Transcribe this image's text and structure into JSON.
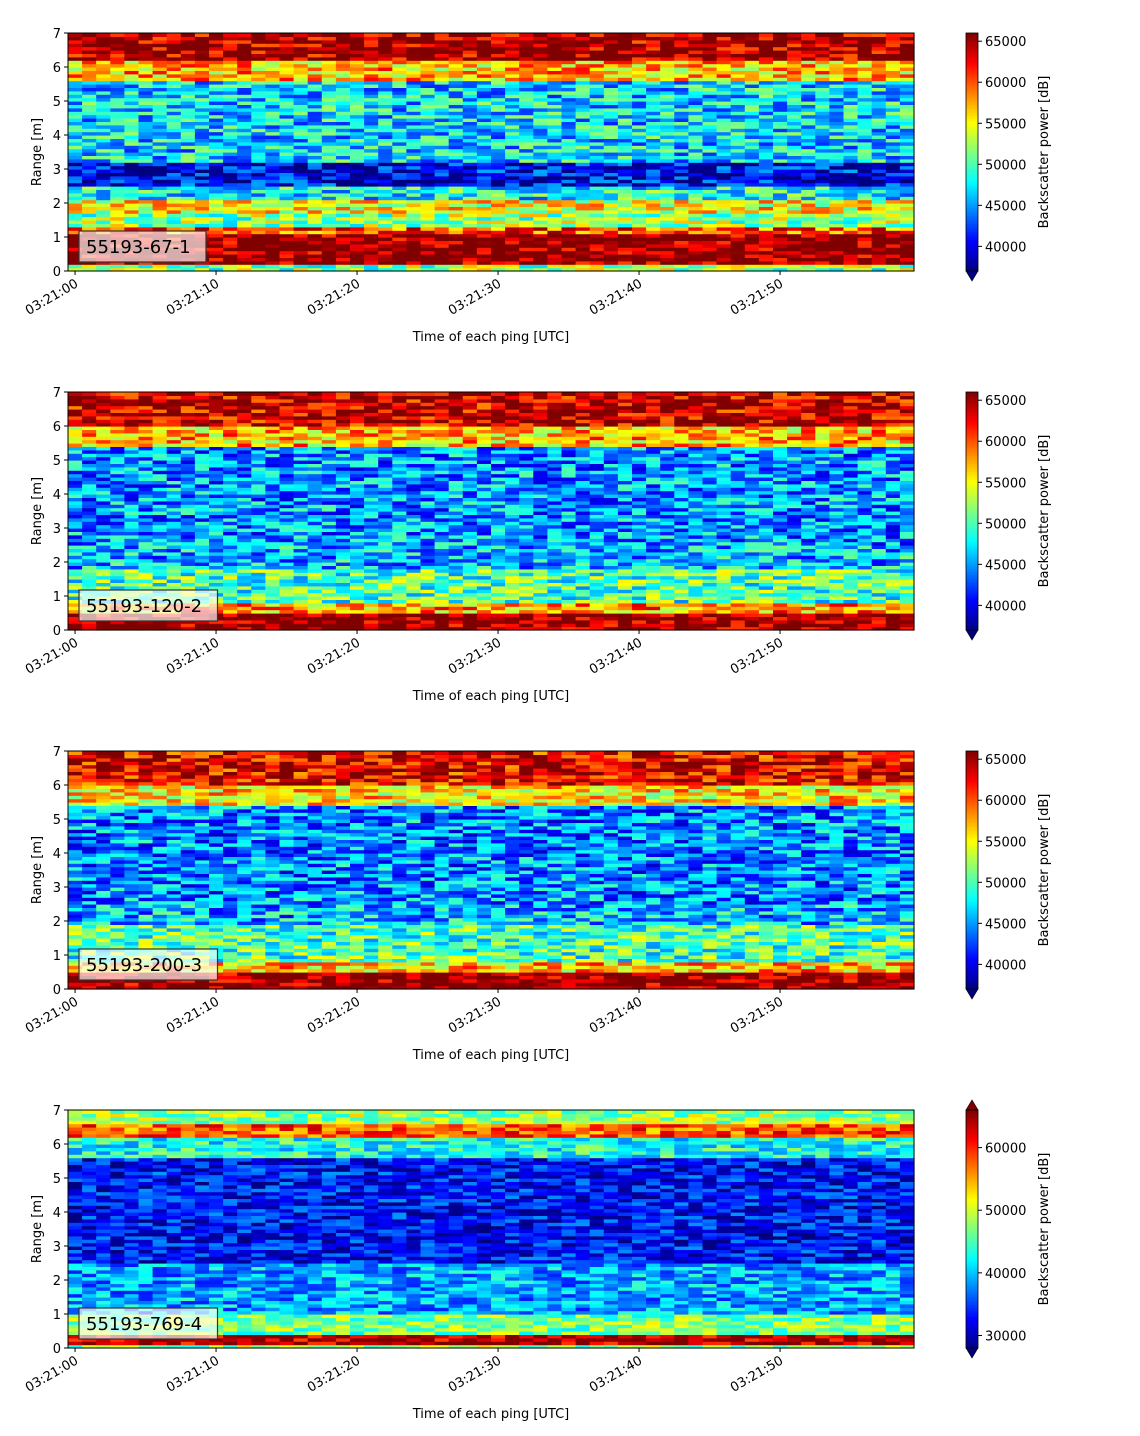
{
  "chart_data": [
    {
      "type": "heatmap",
      "label": "55193-67-1",
      "xlabel": "Time of each ping [UTC]",
      "ylabel": "Range [m]",
      "x_ticks": [
        "03:21:00",
        "03:21:10",
        "03:21:20",
        "03:21:30",
        "03:21:40",
        "03:21:50"
      ],
      "x_range_seconds": [
        0,
        60
      ],
      "ylim": [
        0,
        7
      ],
      "y_ticks": [
        0,
        1,
        2,
        3,
        4,
        5,
        6,
        7
      ],
      "colorbar": {
        "label": "Backscatter power [dB]",
        "ticks": [
          40000,
          45000,
          50000,
          55000,
          60000,
          65000
        ],
        "vmin": 37000,
        "vmax": 66000,
        "extend": "min",
        "colormap": "jet"
      },
      "bands": [
        {
          "y": [
            0.0,
            0.25
          ],
          "value": 52000
        },
        {
          "y": [
            0.25,
            1.1
          ],
          "value": 66000
        },
        {
          "y": [
            1.1,
            1.3
          ],
          "value": 60000
        },
        {
          "y": [
            1.3,
            1.7
          ],
          "value": 52000
        },
        {
          "y": [
            1.7,
            2.1
          ],
          "value": 55000
        },
        {
          "y": [
            2.1,
            2.5
          ],
          "value": 48000
        },
        {
          "y": [
            2.5,
            3.2
          ],
          "value": 40000
        },
        {
          "y": [
            3.2,
            5.6
          ],
          "value": 47000
        },
        {
          "y": [
            5.6,
            6.2
          ],
          "value": 57000
        },
        {
          "y": [
            6.2,
            7.0
          ],
          "value": 65000
        }
      ]
    },
    {
      "type": "heatmap",
      "label": "55193-120-2",
      "xlabel": "Time of each ping [UTC]",
      "ylabel": "Range [m]",
      "x_ticks": [
        "03:21:00",
        "03:21:10",
        "03:21:20",
        "03:21:30",
        "03:21:40",
        "03:21:50"
      ],
      "x_range_seconds": [
        0,
        60
      ],
      "ylim": [
        0,
        7
      ],
      "y_ticks": [
        0,
        1,
        2,
        3,
        4,
        5,
        6,
        7
      ],
      "colorbar": {
        "label": "Backscatter power [dB]",
        "ticks": [
          40000,
          45000,
          50000,
          55000,
          60000,
          65000
        ],
        "vmin": 37000,
        "vmax": 66000,
        "extend": "min",
        "colormap": "jet"
      },
      "bands": [
        {
          "y": [
            0.0,
            0.5
          ],
          "value": 66000
        },
        {
          "y": [
            0.5,
            0.8
          ],
          "value": 58000
        },
        {
          "y": [
            0.8,
            1.8
          ],
          "value": 50000
        },
        {
          "y": [
            1.8,
            2.5
          ],
          "value": 46000
        },
        {
          "y": [
            2.5,
            5.4
          ],
          "value": 45000
        },
        {
          "y": [
            5.4,
            6.0
          ],
          "value": 57000
        },
        {
          "y": [
            6.0,
            7.0
          ],
          "value": 64000
        }
      ]
    },
    {
      "type": "heatmap",
      "label": "55193-200-3",
      "xlabel": "Time of each ping [UTC]",
      "ylabel": "Range [m]",
      "x_ticks": [
        "03:21:00",
        "03:21:10",
        "03:21:20",
        "03:21:30",
        "03:21:40",
        "03:21:50"
      ],
      "x_range_seconds": [
        0,
        60
      ],
      "ylim": [
        0,
        7
      ],
      "y_ticks": [
        0,
        1,
        2,
        3,
        4,
        5,
        6,
        7
      ],
      "colorbar": {
        "label": "Backscatter power [dB]",
        "ticks": [
          40000,
          45000,
          50000,
          55000,
          60000,
          65000
        ],
        "vmin": 37000,
        "vmax": 66000,
        "extend": "min",
        "colormap": "jet"
      },
      "bands": [
        {
          "y": [
            0.0,
            0.5
          ],
          "value": 66000
        },
        {
          "y": [
            0.5,
            0.8
          ],
          "value": 57000
        },
        {
          "y": [
            0.8,
            1.9
          ],
          "value": 50000
        },
        {
          "y": [
            1.9,
            2.5
          ],
          "value": 46000
        },
        {
          "y": [
            2.5,
            5.4
          ],
          "value": 44500
        },
        {
          "y": [
            5.4,
            6.0
          ],
          "value": 56000
        },
        {
          "y": [
            6.0,
            7.0
          ],
          "value": 63000
        }
      ]
    },
    {
      "type": "heatmap",
      "label": "55193-769-4",
      "xlabel": "Time of each ping [UTC]",
      "ylabel": "Range [m]",
      "x_ticks": [
        "03:21:00",
        "03:21:10",
        "03:21:20",
        "03:21:30",
        "03:21:40",
        "03:21:50"
      ],
      "x_range_seconds": [
        0,
        60
      ],
      "ylim": [
        0,
        7
      ],
      "y_ticks": [
        0,
        1,
        2,
        3,
        4,
        5,
        6,
        7
      ],
      "colorbar": {
        "label": "Backscatter power [dB]",
        "ticks": [
          30000,
          40000,
          50000,
          60000
        ],
        "vmin": 28000,
        "vmax": 66000,
        "extend": "both",
        "colormap": "jet"
      },
      "bands": [
        {
          "y": [
            0.0,
            0.15
          ],
          "value": 48000
        },
        {
          "y": [
            0.15,
            0.4
          ],
          "value": 64000
        },
        {
          "y": [
            0.4,
            1.0
          ],
          "value": 47000
        },
        {
          "y": [
            1.0,
            2.5
          ],
          "value": 39000
        },
        {
          "y": [
            2.5,
            5.6
          ],
          "value": 33000
        },
        {
          "y": [
            5.6,
            6.2
          ],
          "value": 43000
        },
        {
          "y": [
            6.2,
            6.6
          ],
          "value": 58000
        },
        {
          "y": [
            6.6,
            7.0
          ],
          "value": 48000
        }
      ]
    }
  ]
}
